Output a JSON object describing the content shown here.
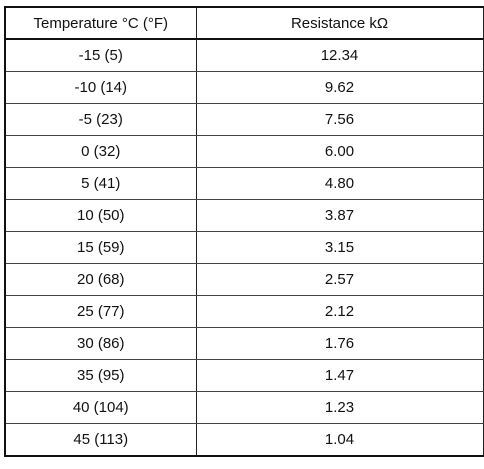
{
  "table": {
    "headers": [
      "Temperature °C (°F)",
      "Resistance kΩ"
    ],
    "rows": [
      [
        "-15 (5)",
        "12.34"
      ],
      [
        "-10 (14)",
        "9.62"
      ],
      [
        "-5 (23)",
        "7.56"
      ],
      [
        "0 (32)",
        "6.00"
      ],
      [
        "5 (41)",
        "4.80"
      ],
      [
        "10 (50)",
        "3.87"
      ],
      [
        "15 (59)",
        "3.15"
      ],
      [
        "20 (68)",
        "2.57"
      ],
      [
        "25 (77)",
        "2.12"
      ],
      [
        "30 (86)",
        "1.76"
      ],
      [
        "35 (95)",
        "1.47"
      ],
      [
        "40 (104)",
        "1.23"
      ],
      [
        "45 (113)",
        "1.04"
      ]
    ]
  }
}
